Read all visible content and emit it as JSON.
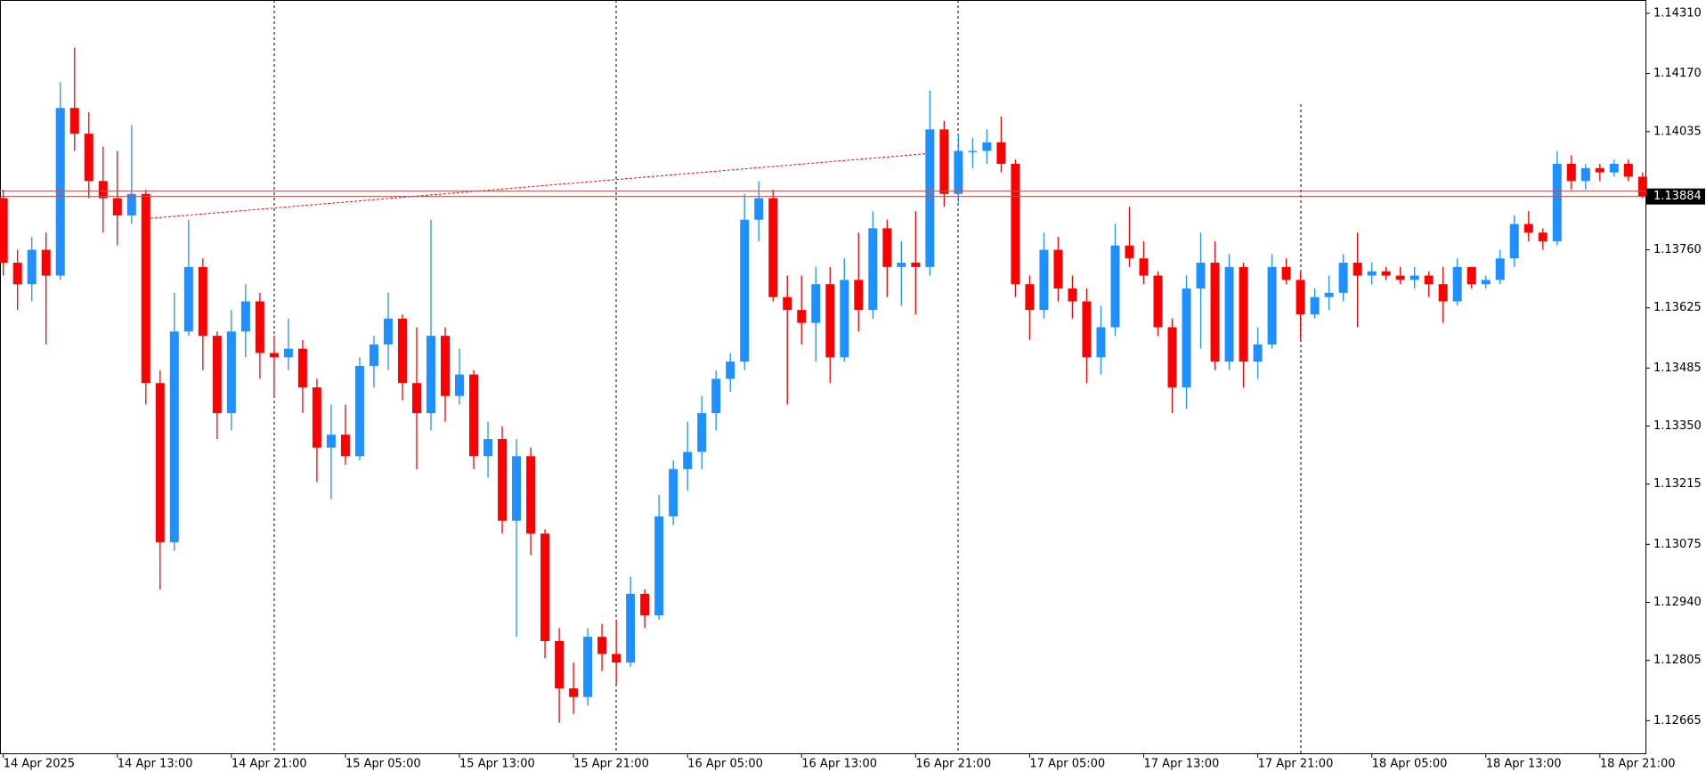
{
  "chart_data": {
    "type": "candlestick",
    "up_color": "#1e90ff",
    "down_color": "#ff0000",
    "current_price_color": "#c0504d",
    "open": [
      1.1388,
      1.1373,
      1.1368,
      1.1376,
      1.137,
      1.1409,
      1.1403,
      1.1392,
      1.1388,
      1.1384,
      1.1389,
      1.1345,
      1.1308,
      1.1357,
      1.1372,
      1.1356,
      1.1338,
      1.1357,
      1.1364,
      1.1352,
      1.1351,
      1.1353,
      1.1344,
      1.133,
      1.1333,
      1.1328,
      1.1349,
      1.1354,
      1.136,
      1.1345,
      1.1338,
      1.1356,
      1.1342,
      1.1347,
      1.1328,
      1.1332,
      1.1313,
      1.1328,
      1.131,
      1.1285,
      1.1274,
      1.1272,
      1.1286,
      1.1282,
      1.128,
      1.1296,
      1.1291,
      1.1314,
      1.1325,
      1.1329,
      1.1338,
      1.1346,
      1.135,
      1.1383,
      1.1388,
      1.1365,
      1.1362,
      1.1359,
      1.1368,
      1.1351,
      1.1369,
      1.1362,
      1.1381,
      1.1372,
      1.1373,
      1.1372,
      1.1404,
      1.1389,
      1.1399,
      1.1399,
      1.1401,
      1.1396,
      1.1368,
      1.1362,
      1.1376,
      1.1367,
      1.1364,
      1.1351,
      1.1358,
      1.1377,
      1.1374,
      1.137,
      1.1358,
      1.1344,
      1.1367,
      1.1373,
      1.135,
      1.1372,
      1.135,
      1.1354,
      1.1372,
      1.1369,
      1.1361,
      1.1365,
      1.1366,
      1.1373,
      1.137,
      1.1371,
      1.137,
      1.1369,
      1.137,
      1.1368,
      1.1364,
      1.1372,
      1.1368,
      1.1369,
      1.1374,
      1.1382,
      1.138,
      1.1378,
      1.1396,
      1.1392,
      1.1395,
      1.1394,
      1.1396,
      1.1393
    ],
    "high": [
      1.139,
      1.1376,
      1.1379,
      1.138,
      1.1415,
      1.1423,
      1.1408,
      1.14,
      1.1399,
      1.1405,
      1.139,
      1.1348,
      1.1366,
      1.1383,
      1.1374,
      1.1357,
      1.1362,
      1.1368,
      1.1366,
      1.1356,
      1.136,
      1.1355,
      1.1346,
      1.134,
      1.134,
      1.1351,
      1.1356,
      1.1366,
      1.1361,
      1.1358,
      1.1383,
      1.1358,
      1.1353,
      1.1348,
      1.1336,
      1.1335,
      1.1332,
      1.133,
      1.1311,
      1.1288,
      1.128,
      1.1288,
      1.1289,
      1.129,
      1.13,
      1.1297,
      1.1319,
      1.1327,
      1.1336,
      1.1342,
      1.1348,
      1.1352,
      1.1389,
      1.1392,
      1.139,
      1.137,
      1.137,
      1.1372,
      1.1372,
      1.1374,
      1.138,
      1.1385,
      1.1383,
      1.1378,
      1.1385,
      1.1413,
      1.1406,
      1.1403,
      1.1402,
      1.1404,
      1.1407,
      1.1397,
      1.137,
      1.138,
      1.1379,
      1.137,
      1.1367,
      1.1363,
      1.1382,
      1.1386,
      1.1378,
      1.1371,
      1.136,
      1.137,
      1.138,
      1.1378,
      1.1375,
      1.1373,
      1.1358,
      1.1375,
      1.1374,
      1.1371,
      1.1367,
      1.137,
      1.1375,
      1.138,
      1.1373,
      1.1372,
      1.1372,
      1.1372,
      1.1371,
      1.1372,
      1.1374,
      1.1372,
      1.137,
      1.1376,
      1.1384,
      1.1385,
      1.1381,
      1.1399,
      1.1398,
      1.1396,
      1.1396,
      1.1397,
      1.1397,
      1.1394
    ],
    "low": [
      1.137,
      1.1362,
      1.1364,
      1.1354,
      1.1369,
      1.1399,
      1.1388,
      1.138,
      1.1377,
      1.1382,
      1.134,
      1.1297,
      1.1306,
      1.1356,
      1.1348,
      1.1332,
      1.1334,
      1.1351,
      1.1346,
      1.1342,
      1.1348,
      1.1338,
      1.1322,
      1.1318,
      1.1326,
      1.1327,
      1.1344,
      1.1348,
      1.1341,
      1.1325,
      1.1334,
      1.1336,
      1.134,
      1.1325,
      1.1323,
      1.131,
      1.1286,
      1.1305,
      1.1281,
      1.1266,
      1.1268,
      1.127,
      1.1278,
      1.1275,
      1.1279,
      1.1288,
      1.129,
      1.1312,
      1.132,
      1.1325,
      1.1334,
      1.1343,
      1.1348,
      1.1378,
      1.1364,
      1.134,
      1.1354,
      1.135,
      1.1345,
      1.135,
      1.1357,
      1.136,
      1.1365,
      1.1363,
      1.1361,
      1.137,
      1.1386,
      1.1387,
      1.1395,
      1.1396,
      1.1394,
      1.1365,
      1.1355,
      1.136,
      1.1364,
      1.136,
      1.1345,
      1.1347,
      1.1356,
      1.1372,
      1.1368,
      1.1356,
      1.1338,
      1.1339,
      1.1353,
      1.1348,
      1.1348,
      1.1344,
      1.1346,
      1.1353,
      1.1368,
      1.1355,
      1.136,
      1.1362,
      1.1364,
      1.1358,
      1.1368,
      1.1369,
      1.1368,
      1.1367,
      1.1365,
      1.1359,
      1.1363,
      1.1367,
      1.1367,
      1.1368,
      1.1372,
      1.1378,
      1.1376,
      1.1377,
      1.139,
      1.139,
      1.1392,
      1.1393,
      1.1392,
      1.1388
    ],
    "close": [
      1.1373,
      1.1368,
      1.1376,
      1.137,
      1.1409,
      1.1403,
      1.1392,
      1.1388,
      1.1384,
      1.1389,
      1.1345,
      1.1308,
      1.1357,
      1.1372,
      1.1356,
      1.1338,
      1.1357,
      1.1364,
      1.1352,
      1.1351,
      1.1353,
      1.1344,
      1.133,
      1.1333,
      1.1328,
      1.1349,
      1.1354,
      1.136,
      1.1345,
      1.1338,
      1.1356,
      1.1342,
      1.1347,
      1.1328,
      1.1332,
      1.1313,
      1.1328,
      1.131,
      1.1285,
      1.1274,
      1.1272,
      1.1286,
      1.1282,
      1.128,
      1.1296,
      1.1291,
      1.1314,
      1.1325,
      1.1329,
      1.1338,
      1.1346,
      1.135,
      1.1383,
      1.1388,
      1.1365,
      1.1362,
      1.1359,
      1.1368,
      1.1351,
      1.1369,
      1.1362,
      1.1381,
      1.1372,
      1.1373,
      1.1372,
      1.1404,
      1.1389,
      1.1399,
      1.1399,
      1.1401,
      1.1396,
      1.1368,
      1.1362,
      1.1376,
      1.1367,
      1.1364,
      1.1351,
      1.1358,
      1.1377,
      1.1374,
      1.137,
      1.1358,
      1.1344,
      1.1367,
      1.1373,
      1.135,
      1.1372,
      1.135,
      1.1354,
      1.1372,
      1.1369,
      1.1361,
      1.1365,
      1.1366,
      1.1373,
      1.137,
      1.1371,
      1.137,
      1.1369,
      1.137,
      1.1368,
      1.1364,
      1.1372,
      1.1368,
      1.1369,
      1.1374,
      1.1382,
      1.138,
      1.1378,
      1.1396,
      1.1392,
      1.1395,
      1.1394,
      1.1396,
      1.1393,
      1.13884
    ],
    "ylim": [
      1.12589,
      1.14341
    ],
    "yticks": [
      {
        "value": 1.1431,
        "label": "1.14310"
      },
      {
        "value": 1.1417,
        "label": "1.14170"
      },
      1.14035,
      {
        "value": 1.1376,
        "label": "1.13760"
      },
      1.13625,
      1.13485,
      {
        "value": 1.1335,
        "label": "1.13350"
      },
      1.13215,
      1.13075,
      {
        "value": 1.1294,
        "label": "1.12940"
      },
      1.12805,
      1.12665
    ],
    "xticks": [
      {
        "value": 0,
        "label": "14 Apr 2025"
      },
      {
        "value": 8,
        "label": "14 Apr 13:00"
      },
      {
        "value": 16,
        "label": "14 Apr 21:00"
      },
      {
        "value": 24,
        "label": "15 Apr 05:00"
      },
      {
        "value": 32,
        "label": "15 Apr 13:00"
      },
      {
        "value": 40,
        "label": "15 Apr 21:00"
      },
      {
        "value": 48,
        "label": "16 Apr 05:00"
      },
      {
        "value": 56,
        "label": "16 Apr 13:00"
      },
      {
        "value": 64,
        "label": "16 Apr 21:00"
      },
      {
        "value": 72,
        "label": "17 Apr 05:00"
      },
      {
        "value": 80,
        "label": "17 Apr 13:00"
      },
      {
        "value": 88,
        "label": "17 Apr 21:00"
      },
      {
        "value": 96,
        "label": "18 Apr 05:00"
      },
      {
        "value": 104,
        "label": "18 Apr 13:00"
      },
      {
        "value": 112,
        "label": "18 Apr 21:00"
      }
    ],
    "current_price": 1.13884
  }
}
